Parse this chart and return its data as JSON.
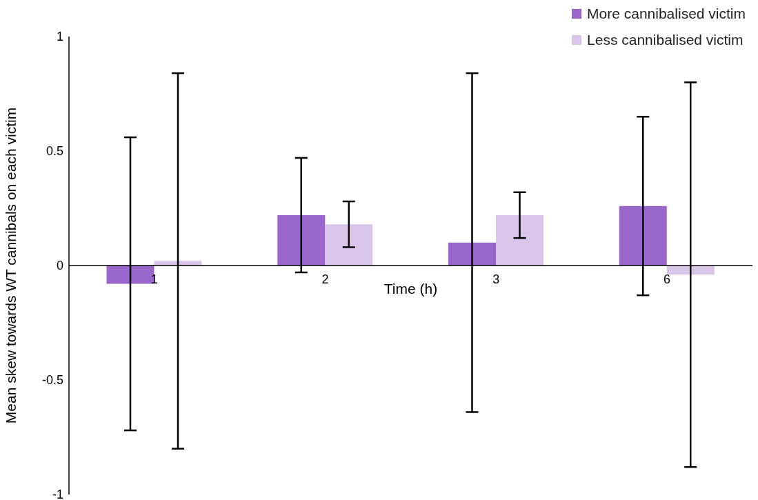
{
  "chart_data": {
    "type": "bar",
    "xlabel": "Time (h)",
    "ylabel": "Mean skew towards WT cannibals on each victim",
    "categories": [
      "1",
      "2",
      "3",
      "6"
    ],
    "series": [
      {
        "name": "More cannibalised victim",
        "color": "#9966cc",
        "values": [
          -0.08,
          0.22,
          0.1,
          0.26
        ],
        "errors": [
          0.64,
          0.25,
          0.74,
          0.39
        ]
      },
      {
        "name": "Less cannibalised victim",
        "color": "#d9c5ea",
        "values": [
          0.02,
          0.18,
          0.22,
          -0.04
        ],
        "errors": [
          0.82,
          0.1,
          0.1,
          0.84
        ]
      }
    ],
    "ylim": [
      -1,
      1
    ],
    "yticks": [
      -1,
      -0.5,
      0,
      0.5,
      1
    ],
    "grid": false,
    "legend": "top right"
  }
}
